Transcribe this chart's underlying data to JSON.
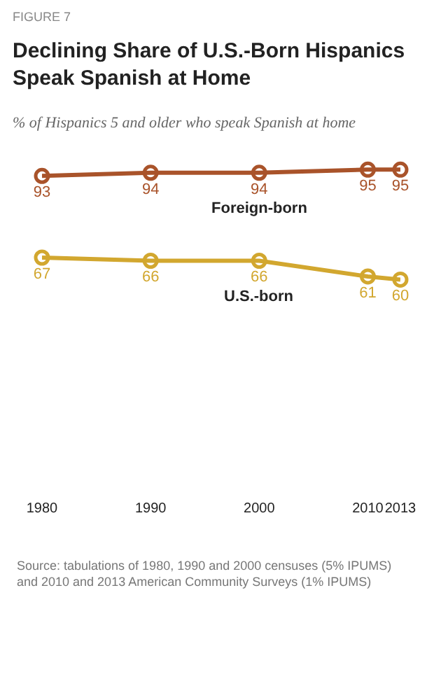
{
  "chart_data": {
    "type": "line",
    "title": "Declining Share of U.S.-Born Hispanics Speak Spanish at Home",
    "subtitle": "% of Hispanics 5 and older who speak Spanish at home",
    "x": [
      1980,
      1990,
      2000,
      2010,
      2013
    ],
    "xlim": [
      1980,
      2013
    ],
    "xticks": [
      1980,
      1990,
      2000,
      2010,
      2013
    ],
    "series": [
      {
        "name": "Foreign-born",
        "color": "#a9532a",
        "values": [
          93,
          94,
          94,
          95,
          95
        ]
      },
      {
        "name": "U.S.-born",
        "color": "#d2a72f",
        "values": [
          67,
          66,
          66,
          61,
          60
        ]
      }
    ],
    "data_labels": true,
    "marker": "circle",
    "line_style": "solid",
    "legend": false,
    "tick_labels": "x",
    "annotations": [
      "FIGURE 7",
      "Source: tabulations of 1980, 1990 and 2000 censuses (5% IPUMS) and 2010 and 2013 American Community Surveys (1% IPUMS)"
    ]
  }
}
